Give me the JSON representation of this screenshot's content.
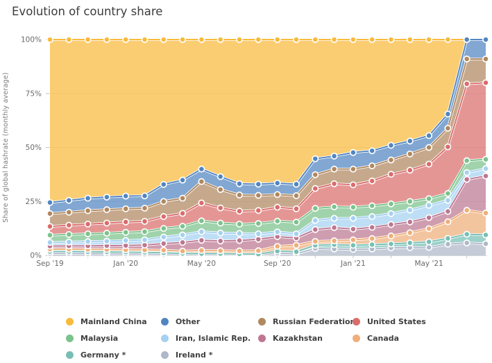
{
  "chart_data": {
    "type": "area",
    "stacked": true,
    "title": "Evolution of country share",
    "xlabel": "",
    "ylabel": "Share of global hashrate (monthly average)",
    "ylim": [
      0,
      100
    ],
    "grid": true,
    "legend_position": "bottom",
    "y_ticks": [
      "0%",
      "25%",
      "50%",
      "75%",
      "100%"
    ],
    "x_tick_indices": [
      0,
      4,
      8,
      12,
      16,
      20
    ],
    "x_minor_tick_step": 2,
    "x": [
      "Sep '19",
      "Oct '19",
      "Nov '19",
      "Dec '19",
      "Jan '20",
      "Feb '20",
      "Mar '20",
      "Apr '20",
      "May '20",
      "Jun '20",
      "Jul '20",
      "Aug '20",
      "Sep '20",
      "Oct '20",
      "Nov '20",
      "Dec '20",
      "Jan '21",
      "Feb '21",
      "Mar '21",
      "Apr '21",
      "May '21",
      "Jun '21",
      "Jul '21",
      "Aug '21"
    ],
    "axis_colors": {
      "grid": "#e7e7e7",
      "baseline": "#d9d9d9",
      "tick": "#c6c6c6",
      "tick_text": "#6a6a6a"
    },
    "series_note": "series listed in stacking order, bottom to top; values are percent share per month",
    "series": [
      {
        "name": "Ireland *",
        "color": "#afb8c9",
        "values": [
          0.9,
          0.9,
          0.8,
          0.8,
          0.7,
          0.6,
          0.5,
          0.3,
          0.4,
          0.4,
          0.3,
          0.3,
          1.0,
          0.8,
          3.2,
          3.0,
          2.8,
          3.0,
          3.5,
          3.6,
          3.7,
          5.2,
          5.8,
          5.4
        ]
      },
      {
        "name": "Germany *",
        "color": "#77bfb5",
        "values": [
          0.9,
          0.9,
          0.9,
          0.8,
          0.8,
          0.8,
          0.7,
          0.6,
          0.4,
          0.4,
          0.4,
          0.3,
          1.0,
          0.9,
          1.5,
          2.0,
          1.9,
          2.0,
          1.8,
          2.2,
          2.6,
          2.7,
          4.0,
          4.1
        ]
      },
      {
        "name": "Canada",
        "color": "#efae7a",
        "values": [
          1.1,
          1.1,
          1.1,
          1.1,
          1.1,
          1.1,
          1.2,
          1.1,
          1.5,
          1.4,
          1.4,
          1.6,
          2.2,
          3.0,
          1.8,
          1.8,
          2.5,
          2.8,
          3.7,
          4.7,
          6.1,
          7.7,
          11.1,
          10.1
        ]
      },
      {
        "name": "Kazakhstan",
        "color": "#bd7791",
        "values": [
          1.4,
          1.5,
          1.6,
          1.8,
          2.0,
          2.3,
          3.1,
          4.0,
          4.7,
          4.5,
          4.8,
          5.3,
          4.5,
          3.4,
          5.5,
          6.1,
          5.0,
          5.2,
          5.3,
          5.0,
          5.1,
          4.8,
          14.3,
          17.2
        ]
      },
      {
        "name": "Iran, Islamic Rep.",
        "color": "#a5d1f1",
        "values": [
          1.7,
          1.8,
          2.0,
          2.1,
          2.3,
          2.4,
          3.0,
          3.5,
          4.0,
          3.7,
          3.3,
          2.5,
          2.2,
          1.9,
          4.2,
          4.3,
          5.0,
          5.0,
          5.1,
          5.5,
          5.7,
          5.1,
          3.2,
          3.4
        ]
      },
      {
        "name": "Malaysia",
        "color": "#7cc28c",
        "values": [
          3.4,
          3.5,
          3.6,
          3.7,
          3.8,
          3.8,
          4.0,
          4.0,
          5.0,
          4.6,
          4.3,
          4.8,
          5.0,
          5.4,
          5.6,
          5.3,
          5.1,
          5.0,
          4.5,
          4.0,
          3.1,
          3.2,
          5.5,
          4.3
        ]
      },
      {
        "name": "United States",
        "color": "#d96d6c",
        "values": [
          4.0,
          4.3,
          4.5,
          4.7,
          4.8,
          4.8,
          5.5,
          6.0,
          8.3,
          7.0,
          6.0,
          6.0,
          6.4,
          6.2,
          9.2,
          10.7,
          10.4,
          11.5,
          13.7,
          14.5,
          16.0,
          21.6,
          35.6,
          35.5
        ]
      },
      {
        "name": "Russian Federation",
        "color": "#b0885f",
        "values": [
          6.0,
          6.0,
          6.2,
          6.2,
          6.1,
          6.1,
          7.0,
          7.0,
          9.9,
          8.5,
          7.5,
          7.0,
          5.9,
          6.1,
          6.4,
          6.8,
          7.3,
          7.0,
          6.6,
          7.5,
          7.7,
          8.6,
          11.5,
          11.0
        ]
      },
      {
        "name": "Other",
        "color": "#5185c1",
        "values": [
          5.1,
          5.5,
          5.8,
          5.8,
          5.9,
          5.7,
          7.9,
          8.4,
          5.8,
          6.0,
          5.2,
          5.2,
          5.3,
          5.3,
          7.4,
          6.0,
          7.7,
          7.0,
          6.8,
          6.0,
          5.5,
          6.6,
          9.0,
          9.0
        ]
      },
      {
        "name": "Mainland China",
        "color": "#f9ba3b",
        "values": [
          75.5,
          74.5,
          73.5,
          73.0,
          72.5,
          72.4,
          67.1,
          65.1,
          60.0,
          63.5,
          66.8,
          67.0,
          66.5,
          67.0,
          55.2,
          54.0,
          52.3,
          51.5,
          49.0,
          47.0,
          44.5,
          34.5,
          0,
          0
        ]
      }
    ],
    "legend": {
      "entries": [
        {
          "label": "Mainland China",
          "color": "#f9ba3b"
        },
        {
          "label": "Other",
          "color": "#5185c1"
        },
        {
          "label": "Russian Federation",
          "color": "#b0885f"
        },
        {
          "label": "United States",
          "color": "#d96d6c"
        },
        {
          "label": "Malaysia",
          "color": "#7cc28c"
        },
        {
          "label": "Iran, Islamic Rep.",
          "color": "#a5d1f1"
        },
        {
          "label": "Kazakhstan",
          "color": "#bd7791"
        },
        {
          "label": "Canada",
          "color": "#efae7a"
        },
        {
          "label": "Germany *",
          "color": "#77bfb5"
        },
        {
          "label": "Ireland *",
          "color": "#afb8c9"
        }
      ]
    }
  }
}
